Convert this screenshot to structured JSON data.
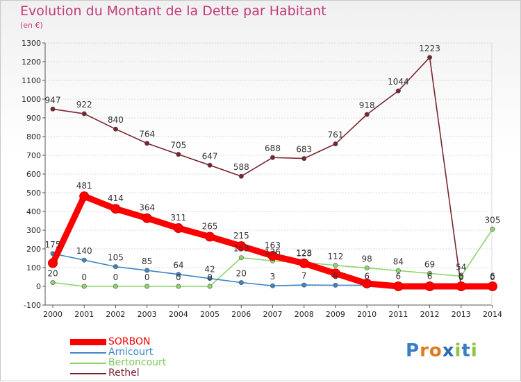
{
  "title": "Evolution du Montant de la Dette par Habitant",
  "subtitle": "(en €)",
  "logo": {
    "text": "Proxiti",
    "letters": [
      "P",
      "r",
      "o",
      "x",
      "i",
      "t",
      "i"
    ],
    "colors": [
      "#3b7dc4",
      "#e07a1f",
      "#e07a1f",
      "#2a6db5",
      "#8cc63f",
      "#3b7dc4",
      "#8cc63f"
    ]
  },
  "colors": {
    "title": "#c33a7c",
    "grid": "#d9d9d9",
    "axis": "#555555"
  },
  "chart_data": {
    "type": "line",
    "title": "Evolution du Montant de la Dette par Habitant",
    "ylabel": "(en €)",
    "xlabel": "",
    "x": [
      "2000",
      "2001",
      "2002",
      "2003",
      "2004",
      "2005",
      "2006",
      "2007",
      "2008",
      "2009",
      "2010",
      "2011",
      "2012",
      "2013",
      "2014"
    ],
    "ylim": [
      -100,
      1300
    ],
    "yticks": [
      "-100",
      "0",
      "100",
      "200",
      "300",
      "400",
      "500",
      "600",
      "700",
      "800",
      "900",
      "1000",
      "1100",
      "1200",
      "1300"
    ],
    "grid": true,
    "legend_position": "bottom-left",
    "series": [
      {
        "name": "SORBON",
        "color": "#ff0000",
        "values": [
          124,
          481,
          414,
          364,
          311,
          265,
          215,
          163,
          123,
          69,
          15,
          0,
          0,
          0,
          0
        ],
        "labels": [
          "",
          "481",
          "414",
          "364",
          "311",
          "265",
          "215",
          "163",
          "123",
          "",
          "",
          "",
          "",
          "",
          ""
        ]
      },
      {
        "name": "Arnicourt",
        "color": "#3b86c6",
        "values": [
          175,
          140,
          105,
          85,
          64,
          42,
          20,
          3,
          7,
          6,
          6,
          6,
          6,
          6,
          6
        ],
        "labels": [
          "175",
          "140",
          "105",
          "85",
          "64",
          "42",
          "20",
          "3",
          "7",
          "6",
          "6",
          "6",
          "6",
          "6",
          "6"
        ]
      },
      {
        "name": "Bertoncourt",
        "color": "#8fd46b",
        "values": [
          20,
          0,
          0,
          0,
          0,
          0,
          153,
          136,
          128,
          112,
          98,
          84,
          69,
          54,
          305
        ],
        "labels": [
          "20",
          "0",
          "0",
          "0",
          "0",
          "0",
          "153",
          "136",
          "128",
          "112",
          "98",
          "84",
          "69",
          "54",
          "305"
        ]
      },
      {
        "name": "Rethel",
        "color": "#7a2430",
        "values": [
          947,
          922,
          840,
          764,
          705,
          647,
          588,
          688,
          683,
          761,
          918,
          1044,
          1223,
          0,
          0
        ],
        "labels": [
          "947",
          "922",
          "840",
          "764",
          "705",
          "647",
          "588",
          "688",
          "683",
          "761",
          "918",
          "1044",
          "1223",
          "0",
          "0"
        ]
      }
    ]
  }
}
